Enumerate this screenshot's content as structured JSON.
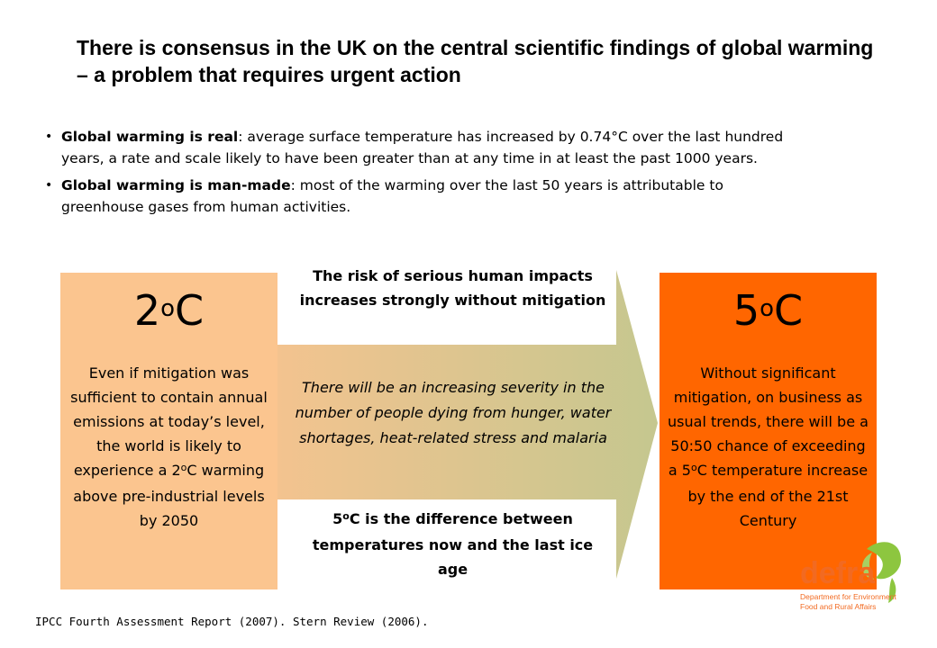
{
  "title": "There is consensus in the UK on the central scientific findings of global warming – a problem that requires urgent action",
  "bullets": [
    {
      "lead": "Global warming is real",
      "text": ": average surface temperature has increased by 0.74°C over the last hundred years, a rate and scale likely to have been greater than at any time in at least the past 1000 years."
    },
    {
      "lead": "Global warming is man-made",
      "text": ": most of the warming over the last 50 years is attributable to greenhouse gases from human activities."
    }
  ],
  "left_box": {
    "temp_num": "2",
    "temp_deg": "o",
    "temp_unit": "C",
    "text_a": "Even if mitigation was sufficient to contain annual emissions at today’s level, the world is likely to experience a 2",
    "text_deg": "o",
    "text_b": "C warming above pre-industrial levels by 2050"
  },
  "right_box": {
    "temp_num": "5",
    "temp_deg": "o",
    "temp_unit": "C",
    "text_a": "Without significant mitigation, on business as usual trends, there will be a 50:50 chance of exceeding a 5",
    "text_deg": "o",
    "text_b": "C temperature increase by the end of the 21st Century"
  },
  "arrow": {
    "top_text": "The risk of serious human impacts increases strongly without mitigation",
    "middle_text": "There will be an increasing severity in the number of people dying from hunger, water shortages, heat-related stress and malaria",
    "bottom_num": "5",
    "bottom_deg": "o",
    "bottom_text": "C is the difference between temperatures now and the last ice age"
  },
  "footer": "IPCC Fourth Assessment Report (2007). Stern Review (2006).",
  "logo": {
    "name": "defra",
    "line1": "Department for Environment",
    "line2": "Food and Rural Affairs"
  },
  "colors": {
    "left_box": "#fbc58f",
    "right_box": "#ff6600",
    "arrow_start": "#f4c38f",
    "arrow_end": "#c5c78f",
    "logo_orange": "#f26a21",
    "logo_green": "#8dc63f"
  }
}
